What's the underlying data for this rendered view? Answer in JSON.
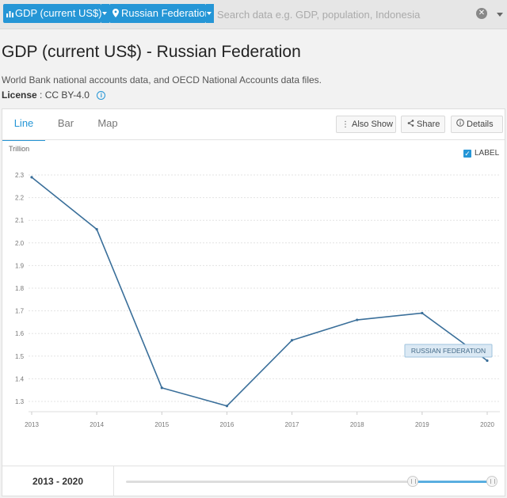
{
  "search": {
    "indicator_chip": "GDP (current US$)",
    "country_chip": "Russian Federation",
    "placeholder": "Search data e.g. GDP, population, Indonesia"
  },
  "header": {
    "title": "GDP (current US$) - Russian Federation",
    "source": "World Bank national accounts data, and OECD National Accounts data files.",
    "license_label": "License",
    "license_value": ": CC BY-4.0"
  },
  "tabs": [
    {
      "label": "Line",
      "active": true
    },
    {
      "label": "Bar",
      "active": false
    },
    {
      "label": "Map",
      "active": false
    }
  ],
  "toolbar": {
    "also_show": "Also Show",
    "share": "Share",
    "details": "Details"
  },
  "label_toggle": {
    "label": "LABEL",
    "checked": true
  },
  "range": {
    "start": "2013",
    "end": "2020",
    "text": "2013 - 2020"
  },
  "colors": {
    "accent": "#2596d6",
    "line": "#3a6f9a"
  },
  "chart_data": {
    "type": "line",
    "unit_label": "Trillion",
    "x": [
      "2013",
      "2014",
      "2015",
      "2016",
      "2017",
      "2018",
      "2019",
      "2020"
    ],
    "series": [
      {
        "name": "RUSSIAN FEDERATION",
        "values": [
          2.29,
          2.06,
          1.36,
          1.28,
          1.57,
          1.66,
          1.69,
          1.48
        ]
      }
    ],
    "yticks": [
      "2.3",
      "2.2",
      "2.1",
      "2.0",
      "1.9",
      "1.8",
      "1.7",
      "1.6",
      "1.5",
      "1.4",
      "1.3"
    ],
    "ylim": [
      1.3,
      2.3
    ],
    "grid": true
  }
}
